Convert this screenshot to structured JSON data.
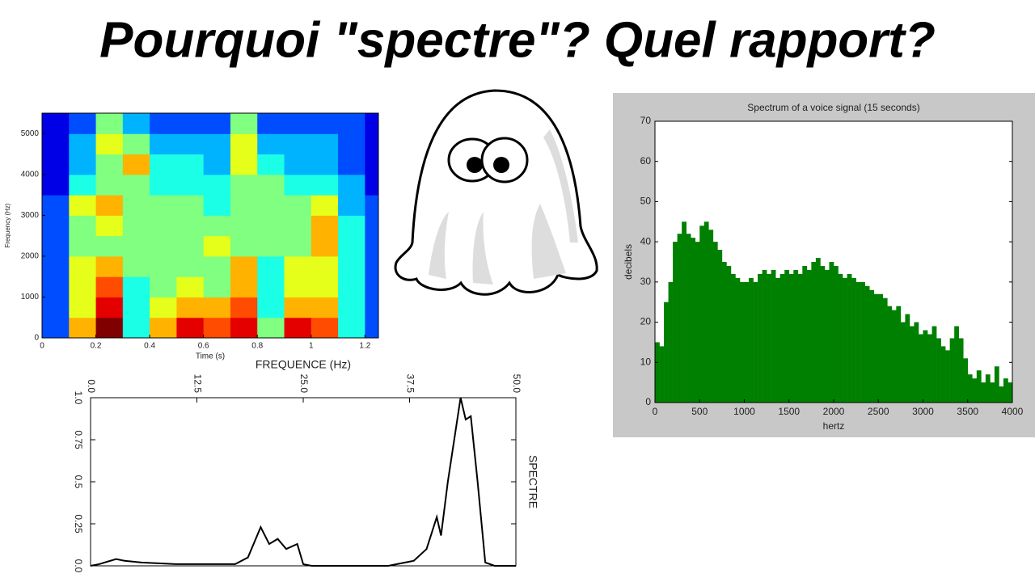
{
  "title": "Pourquoi \"spectre\"? Quel rapport?",
  "chart_data": [
    {
      "type": "heatmap",
      "xlabel": "Time (s)",
      "ylabel": "Frequency (Hz)",
      "xlim": [
        0,
        1.25
      ],
      "ylim": [
        0,
        5500
      ],
      "xticks": [
        0,
        0.2,
        0.4,
        0.6,
        0.8,
        1,
        1.2
      ],
      "yticks": [
        0,
        1000,
        2000,
        3000,
        4000,
        5000
      ],
      "x": [
        0,
        0.1,
        0.2,
        0.3,
        0.4,
        0.5,
        0.6,
        0.7,
        0.8,
        0.9,
        1,
        1.1,
        1.2
      ],
      "y": [
        0,
        500,
        1000,
        1500,
        2000,
        2500,
        3000,
        3500,
        4000,
        4500,
        5000
      ],
      "z": [
        [
          2,
          7,
          10,
          4,
          7,
          9,
          8,
          9,
          5,
          9,
          8,
          4,
          2
        ],
        [
          2,
          6,
          9,
          4,
          6,
          7,
          7,
          8,
          4,
          7,
          7,
          4,
          2
        ],
        [
          2,
          6,
          8,
          4,
          5,
          6,
          5,
          7,
          4,
          6,
          6,
          4,
          2
        ],
        [
          2,
          6,
          7,
          5,
          5,
          5,
          5,
          7,
          4,
          6,
          6,
          4,
          2
        ],
        [
          2,
          5,
          5,
          5,
          5,
          5,
          6,
          5,
          5,
          5,
          7,
          4,
          2
        ],
        [
          2,
          5,
          6,
          5,
          5,
          5,
          5,
          5,
          5,
          5,
          7,
          4,
          2
        ],
        [
          2,
          6,
          7,
          5,
          5,
          5,
          4,
          5,
          5,
          5,
          6,
          3,
          2
        ],
        [
          1,
          4,
          5,
          5,
          4,
          4,
          4,
          5,
          5,
          4,
          4,
          3,
          1
        ],
        [
          1,
          3,
          5,
          7,
          4,
          4,
          3,
          6,
          4,
          3,
          3,
          2,
          1
        ],
        [
          1,
          3,
          6,
          5,
          3,
          3,
          3,
          6,
          3,
          3,
          3,
          2,
          1
        ],
        [
          1,
          2,
          5,
          3,
          2,
          2,
          2,
          5,
          2,
          2,
          2,
          2,
          1
        ]
      ]
    },
    {
      "type": "line",
      "xlabel": "FREQUENCE (Hz)",
      "ylabel": "SPECTRE",
      "color": "#000000",
      "xlim": [
        0,
        50
      ],
      "ylim": [
        0,
        1
      ],
      "xticks": [
        {
          "value": 0,
          "label": "0.0"
        },
        12.5,
        {
          "value": 25,
          "label": "25.0"
        },
        37.5,
        {
          "value": 50,
          "label": "50.0"
        }
      ],
      "yticks": [
        {
          "value": 0,
          "label": "0.0"
        },
        0.25,
        0.5,
        0.75,
        {
          "value": 1,
          "label": "1.0"
        }
      ],
      "x": [
        0,
        1,
        3,
        4,
        6,
        10,
        17,
        18.5,
        20,
        21,
        22,
        23,
        24.3,
        25,
        26,
        35,
        38,
        39.5,
        40.7,
        41.2,
        42,
        43.5,
        44.1,
        44.7,
        45.5,
        46.4,
        47.5,
        50
      ],
      "values": [
        0,
        0.01,
        0.04,
        0.03,
        0.02,
        0.01,
        0.01,
        0.05,
        0.23,
        0.13,
        0.16,
        0.1,
        0.13,
        0.01,
        0,
        0,
        0.03,
        0.1,
        0.29,
        0.18,
        0.5,
        1,
        0.87,
        0.89,
        0.5,
        0.02,
        0,
        0
      ]
    },
    {
      "type": "bar",
      "title": "Spectrum of a voice signal (15 seconds)",
      "xlabel": "hertz",
      "ylabel": "decibels",
      "color": "#008000",
      "xlim": [
        0,
        4000
      ],
      "ylim": [
        0,
        70
      ],
      "xticks": [
        0,
        500,
        1000,
        1500,
        2000,
        2500,
        3000,
        3500,
        4000
      ],
      "yticks": [
        0,
        10,
        20,
        30,
        40,
        50,
        60,
        70
      ],
      "x": [
        0,
        50,
        100,
        150,
        200,
        250,
        300,
        350,
        400,
        450,
        500,
        550,
        600,
        650,
        700,
        750,
        800,
        850,
        900,
        950,
        1000,
        1050,
        1100,
        1150,
        1200,
        1250,
        1300,
        1350,
        1400,
        1450,
        1500,
        1550,
        1600,
        1650,
        1700,
        1750,
        1800,
        1850,
        1900,
        1950,
        2000,
        2050,
        2100,
        2150,
        2200,
        2250,
        2300,
        2350,
        2400,
        2450,
        2500,
        2550,
        2600,
        2650,
        2700,
        2750,
        2800,
        2850,
        2900,
        2950,
        3000,
        3050,
        3100,
        3150,
        3200,
        3250,
        3300,
        3350,
        3400,
        3450,
        3500,
        3550,
        3600,
        3650,
        3700,
        3750,
        3800,
        3850,
        3900,
        3950
      ],
      "values": [
        15,
        14,
        25,
        30,
        40,
        42,
        45,
        42,
        41,
        40,
        44,
        45,
        43,
        40,
        38,
        35,
        34,
        32,
        31,
        30,
        30,
        31,
        30,
        32,
        33,
        32,
        33,
        31,
        32,
        33,
        32,
        33,
        32,
        34,
        33,
        35,
        36,
        34,
        33,
        35,
        34,
        32,
        31,
        32,
        31,
        30,
        30,
        29,
        28,
        27,
        27,
        26,
        24,
        23,
        24,
        20,
        22,
        19,
        20,
        17,
        18,
        17,
        19,
        16,
        14,
        13,
        16,
        19,
        16,
        11,
        7,
        6,
        8,
        5,
        7,
        5,
        9,
        4,
        6,
        5
      ]
    }
  ]
}
